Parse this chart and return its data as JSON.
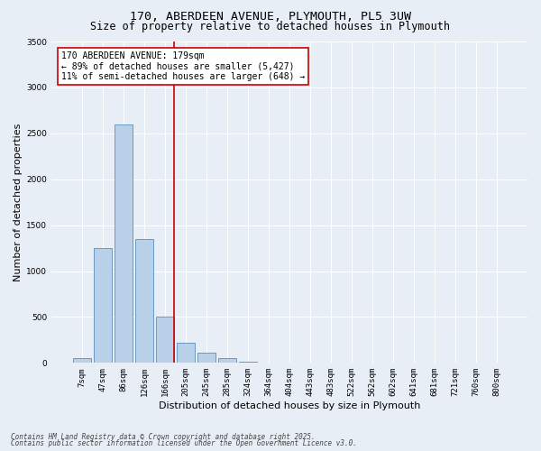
{
  "title_line1": "170, ABERDEEN AVENUE, PLYMOUTH, PL5 3UW",
  "title_line2": "Size of property relative to detached houses in Plymouth",
  "xlabel": "Distribution of detached houses by size in Plymouth",
  "ylabel": "Number of detached properties",
  "categories": [
    "7sqm",
    "47sqm",
    "86sqm",
    "126sqm",
    "166sqm",
    "205sqm",
    "245sqm",
    "285sqm",
    "324sqm",
    "364sqm",
    "404sqm",
    "443sqm",
    "483sqm",
    "522sqm",
    "562sqm",
    "602sqm",
    "641sqm",
    "681sqm",
    "721sqm",
    "760sqm",
    "800sqm"
  ],
  "values": [
    55,
    1250,
    2600,
    1350,
    500,
    215,
    110,
    50,
    18,
    5,
    2,
    1,
    0,
    0,
    0,
    0,
    0,
    0,
    0,
    0,
    0
  ],
  "bar_color": "#b8d0e8",
  "bar_edgecolor": "#5a8fc0",
  "vline_color": "#cc0000",
  "annotation_text": "170 ABERDEEN AVENUE: 179sqm\n← 89% of detached houses are smaller (5,427)\n11% of semi-detached houses are larger (648) →",
  "annotation_box_facecolor": "#ffffff",
  "annotation_box_edgecolor": "#cc0000",
  "ylim": [
    0,
    3500
  ],
  "yticks": [
    0,
    500,
    1000,
    1500,
    2000,
    2500,
    3000,
    3500
  ],
  "background_color": "#e8eef5",
  "grid_color": "#ffffff",
  "footer_line1": "Contains HM Land Registry data © Crown copyright and database right 2025.",
  "footer_line2": "Contains public sector information licensed under the Open Government Licence v3.0.",
  "title_fontsize": 9.5,
  "subtitle_fontsize": 8.5,
  "tick_fontsize": 6.5,
  "ylabel_fontsize": 8,
  "xlabel_fontsize": 8,
  "annotation_fontsize": 7,
  "footer_fontsize": 5.5
}
